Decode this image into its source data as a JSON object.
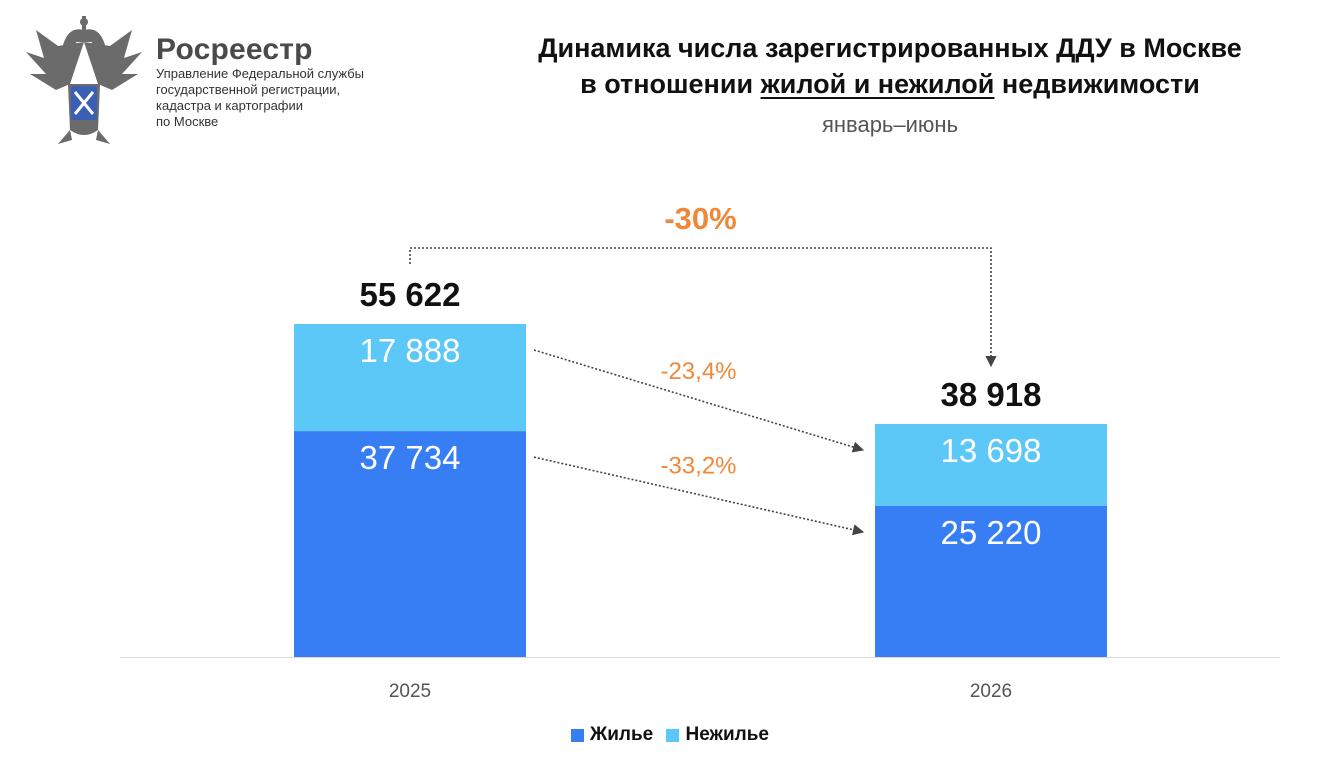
{
  "header": {
    "org_name": "Росреестр",
    "org_lines": [
      "Управление Федеральной службы",
      "государственной регистрации,",
      "кадастра и картографии",
      "по Москве"
    ],
    "title_line1": "Динамика числа зарегистрированных ДДУ в Москве",
    "title_line2_prefix": "в отношении ",
    "title_line2_underlined": "жилой и нежилой",
    "title_line2_suffix": " недвижимости",
    "subtitle": "январь–июнь"
  },
  "colors": {
    "residential": "#377df4",
    "non_residential": "#5bc8f8",
    "change": "#f0883a",
    "axis": "#d9d9d9"
  },
  "chart_data": {
    "type": "bar",
    "stacked": true,
    "categories": [
      "2025",
      "2026"
    ],
    "series": [
      {
        "name": "Жилье",
        "values": [
          37734,
          25220
        ],
        "labels": [
          "37 734",
          "25 220"
        ]
      },
      {
        "name": "Нежилье",
        "values": [
          17888,
          13698
        ],
        "labels": [
          "17 888",
          "13 698"
        ]
      }
    ],
    "totals": [
      55622,
      38918
    ],
    "total_labels": [
      "55 622",
      "38 918"
    ],
    "changes": {
      "total": "-30%",
      "non_residential": "-23,4%",
      "residential": "-33,2%"
    },
    "legend_position": "bottom",
    "grid": false
  }
}
